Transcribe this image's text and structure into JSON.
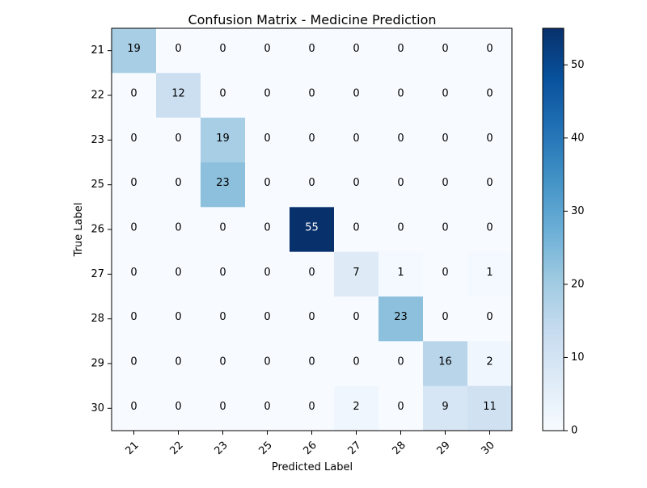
{
  "chart_data": {
    "type": "heatmap",
    "title": "Confusion Matrix - Medicine Prediction",
    "xlabel": "Predicted Label",
    "ylabel": "True Label",
    "x_categories": [
      "21",
      "22",
      "23",
      "25",
      "26",
      "27",
      "28",
      "29",
      "30"
    ],
    "y_categories": [
      "21",
      "22",
      "23",
      "25",
      "26",
      "27",
      "28",
      "29",
      "30"
    ],
    "matrix": [
      [
        19,
        0,
        0,
        0,
        0,
        0,
        0,
        0,
        0
      ],
      [
        0,
        12,
        0,
        0,
        0,
        0,
        0,
        0,
        0
      ],
      [
        0,
        0,
        19,
        0,
        0,
        0,
        0,
        0,
        0
      ],
      [
        0,
        0,
        23,
        0,
        0,
        0,
        0,
        0,
        0
      ],
      [
        0,
        0,
        0,
        0,
        55,
        0,
        0,
        0,
        0
      ],
      [
        0,
        0,
        0,
        0,
        0,
        7,
        1,
        0,
        1
      ],
      [
        0,
        0,
        0,
        0,
        0,
        0,
        23,
        0,
        0
      ],
      [
        0,
        0,
        0,
        0,
        0,
        0,
        0,
        16,
        2
      ],
      [
        0,
        0,
        0,
        0,
        0,
        2,
        0,
        9,
        11
      ]
    ],
    "colorbar": {
      "min": 0,
      "max": 55,
      "ticks": [
        "0",
        "10",
        "20",
        "30",
        "40",
        "50"
      ],
      "colormap": "Blues",
      "low_color": "#f7fbff",
      "high_color": "#08306b"
    },
    "grid": false,
    "legend": "colorbar-right"
  }
}
